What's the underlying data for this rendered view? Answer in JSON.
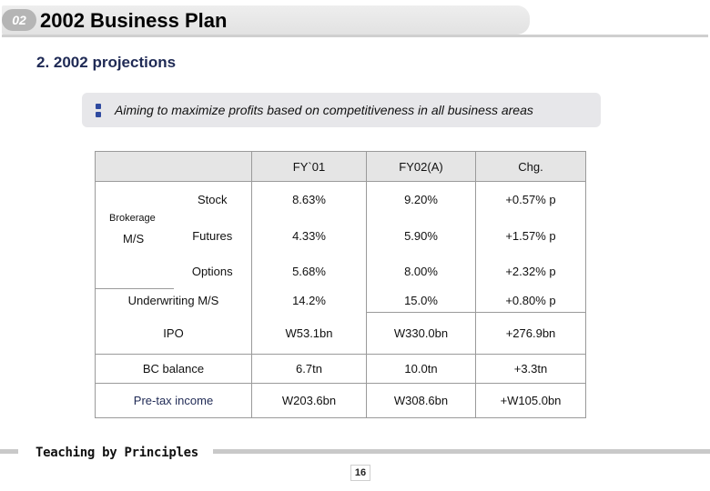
{
  "header": {
    "badge": "02",
    "title": "2002 Business Plan"
  },
  "section": {
    "subtitle": "2. 2002 projections"
  },
  "aim": {
    "text": "Aiming to maximize profits based on competitiveness in all business areas"
  },
  "table": {
    "columns": [
      "FY`01",
      "FY02(A)",
      "Chg."
    ],
    "brokerage": {
      "label1": "Brokerage",
      "label2": "M/S"
    },
    "rows": [
      {
        "label": "Stock",
        "fy01": "8.63%",
        "fy02": "9.20%",
        "chg": "+0.57% p"
      },
      {
        "label": "Futures",
        "fy01": "4.33%",
        "fy02": "5.90%",
        "chg": "+1.57% p"
      },
      {
        "label": "Options",
        "fy01": "5.68%",
        "fy02": "8.00%",
        "chg": "+2.32% p"
      },
      {
        "label": "Underwriting M/S",
        "fy01": "14.2%",
        "fy02": "15.0%",
        "chg": "+0.80% p"
      },
      {
        "label": "IPO",
        "fy01": "W53.1bn",
        "fy02": "W330.0bn",
        "chg": "+276.9bn"
      },
      {
        "label": "BC balance",
        "fy01": "6.7tn",
        "fy02": "10.0tn",
        "chg": "+3.3tn"
      },
      {
        "label": "Pre-tax income",
        "fy01": "W203.6bn",
        "fy02": "W308.6bn",
        "chg": "+W105.0bn"
      }
    ]
  },
  "footer": {
    "text": "Teaching by Principles",
    "page": "16"
  }
}
